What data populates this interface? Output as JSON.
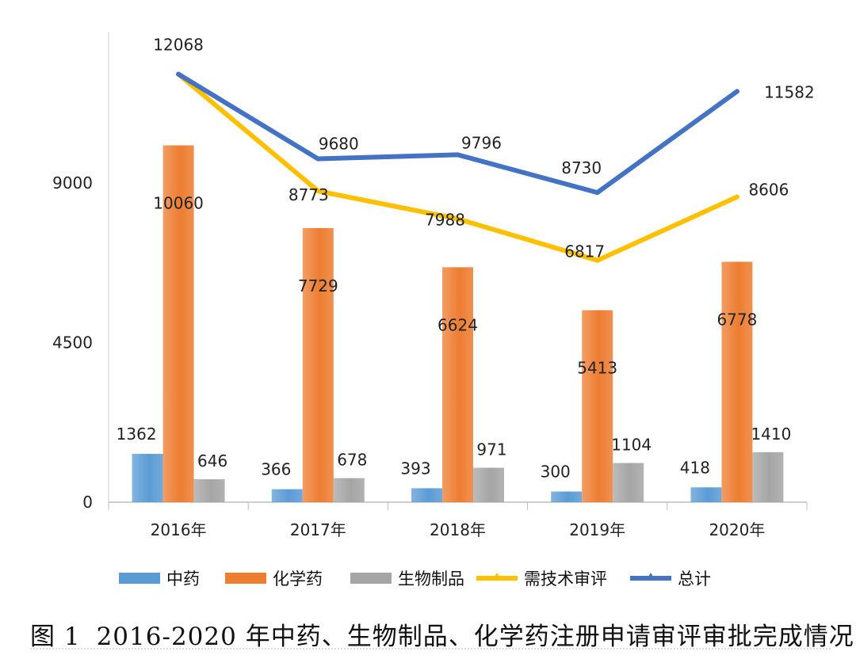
{
  "chart_data": {
    "type": "bar",
    "title": "",
    "xlabel": "",
    "ylabel": "",
    "ylim": [
      0,
      13500
    ],
    "yticks": [
      0,
      4500,
      9000
    ],
    "categories": [
      "2016年",
      "2017年",
      "2018年",
      "2019年",
      "2020年"
    ],
    "bar_series": [
      {
        "name": "中药",
        "values": [
          1362,
          366,
          393,
          300,
          418
        ],
        "color": "#5b9bd5"
      },
      {
        "name": "化学药",
        "values": [
          10060,
          7729,
          6624,
          5413,
          6778
        ],
        "color": "#ed7d31"
      },
      {
        "name": "生物制品",
        "values": [
          646,
          678,
          971,
          1104,
          1410
        ],
        "color": "#a5a5a5"
      }
    ],
    "line_series": [
      {
        "name": "需技术审评",
        "values": [
          12068,
          8773,
          7988,
          6817,
          8606
        ],
        "color": "#ffc000"
      },
      {
        "name": "总计",
        "values": [
          12068,
          9680,
          9796,
          8730,
          11582
        ],
        "color": "#4472c4"
      }
    ],
    "legend": [
      "中药",
      "化学药",
      "生物制品",
      "需技术审评",
      "总计"
    ],
    "legend_position": "bottom"
  },
  "caption": {
    "figure_label": "图 1",
    "text": "2016-2020 年中药、生物制品、化学药注册申请审评审批完成情况"
  }
}
